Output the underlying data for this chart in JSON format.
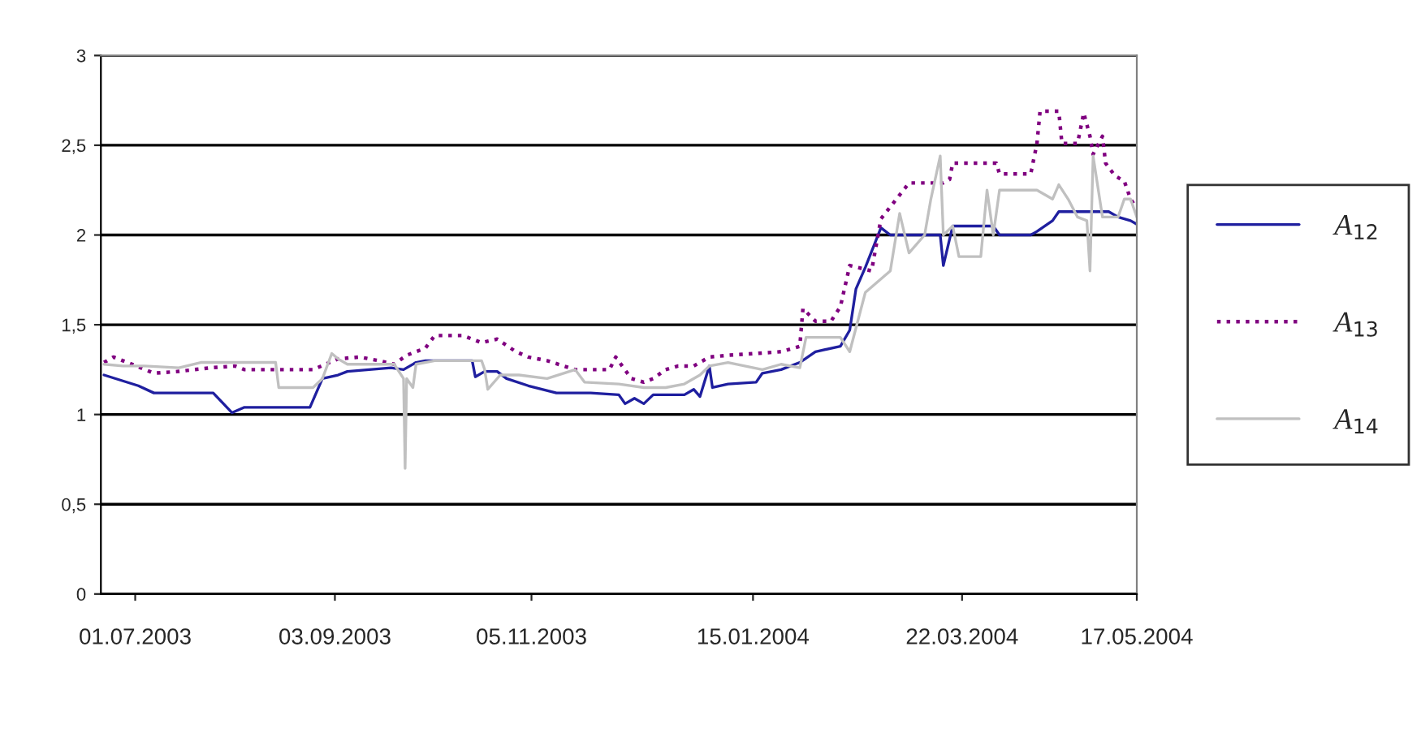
{
  "chart_data": {
    "type": "line",
    "xlim": [
      "2003-06-20",
      "2004-05-17"
    ],
    "xticks": [
      {
        "value": "2003-07-01",
        "label": "01.07.2003"
      },
      {
        "value": "2003-09-03",
        "label": "03.09.2003"
      },
      {
        "value": "2003-11-05",
        "label": "05.11.2003"
      },
      {
        "value": "2004-01-15",
        "label": "15.01.2004"
      },
      {
        "value": "2004-03-22",
        "label": "22.03.2004"
      },
      {
        "value": "2004-05-17",
        "label": "17.05.2004"
      }
    ],
    "ylim": [
      0,
      3
    ],
    "yticks": [
      0,
      {
        "value": 0.5,
        "label": "0,5"
      },
      1,
      {
        "value": 1.5,
        "label": "1,5"
      },
      2,
      {
        "value": 2.5,
        "label": "2,5"
      },
      3
    ],
    "grid": "y",
    "legend": "right",
    "series": [
      {
        "name": "A$_{12}$",
        "color": "#1f1f9f",
        "line_style": "solid",
        "x": [
          "2003-06-21",
          "2003-07-02",
          "2003-07-07",
          "2003-07-26",
          "2003-08-01",
          "2003-08-05",
          "2003-08-26",
          "2003-08-30",
          "2003-09-04",
          "2003-09-07",
          "2003-09-14",
          "2003-09-21",
          "2003-09-25",
          "2003-09-29",
          "2003-10-02",
          "2003-10-17",
          "2003-10-18",
          "2003-10-21",
          "2003-10-25",
          "2003-10-28",
          "2003-11-04",
          "2003-11-13",
          "2003-11-24",
          "2003-12-03",
          "2003-12-05",
          "2003-12-08",
          "2003-12-11",
          "2003-12-14",
          "2003-12-24",
          "2003-12-27",
          "2003-12-29",
          "2004-01-01",
          "2004-01-02",
          "2004-01-07",
          "2004-01-16",
          "2004-01-18",
          "2004-01-24",
          "2004-01-30",
          "2004-02-04",
          "2004-02-12",
          "2004-02-15",
          "2004-02-17",
          "2004-02-20",
          "2004-02-25",
          "2004-02-28",
          "2004-03-15",
          "2004-03-16",
          "2004-03-19",
          "2004-04-01",
          "2004-04-03",
          "2004-04-13",
          "2004-04-15",
          "2004-04-20",
          "2004-04-22",
          "2004-05-08",
          "2004-05-11",
          "2004-05-15",
          "2004-05-17"
        ],
        "values": [
          1.22,
          1.16,
          1.12,
          1.12,
          1.01,
          1.04,
          1.04,
          1.2,
          1.22,
          1.24,
          1.25,
          1.26,
          1.25,
          1.29,
          1.3,
          1.3,
          1.21,
          1.24,
          1.24,
          1.2,
          1.16,
          1.12,
          1.12,
          1.11,
          1.06,
          1.09,
          1.06,
          1.11,
          1.11,
          1.14,
          1.1,
          1.27,
          1.15,
          1.17,
          1.18,
          1.23,
          1.25,
          1.29,
          1.35,
          1.38,
          1.47,
          1.7,
          1.82,
          2.04,
          2.0,
          2.0,
          1.83,
          2.05,
          2.05,
          2.0,
          2.0,
          2.02,
          2.08,
          2.13,
          2.13,
          2.1,
          2.08,
          2.06
        ]
      },
      {
        "name": "A$_{13}$",
        "color": "#800080",
        "line_style": "dotted",
        "x": [
          "2003-06-21",
          "2003-06-24",
          "2003-06-30",
          "2003-07-07",
          "2003-07-15",
          "2003-07-25",
          "2003-08-02",
          "2003-08-05",
          "2003-08-27",
          "2003-08-31",
          "2003-09-04",
          "2003-09-11",
          "2003-09-17",
          "2003-09-22",
          "2003-09-26",
          "2003-10-02",
          "2003-10-05",
          "2003-10-14",
          "2003-10-20",
          "2003-10-25",
          "2003-10-31",
          "2003-11-04",
          "2003-11-10",
          "2003-11-19",
          "2003-11-30",
          "2003-12-02",
          "2003-12-07",
          "2003-12-11",
          "2003-12-14",
          "2003-12-18",
          "2003-12-22",
          "2003-12-27",
          "2004-01-01",
          "2004-01-07",
          "2004-01-16",
          "2004-01-24",
          "2004-01-30",
          "2004-01-31",
          "2004-02-04",
          "2004-02-09",
          "2004-02-12",
          "2004-02-15",
          "2004-02-22",
          "2004-02-25",
          "2004-03-05",
          "2004-03-16",
          "2004-03-18",
          "2004-03-19",
          "2004-04-02",
          "2004-04-03",
          "2004-04-13",
          "2004-04-15",
          "2004-04-16",
          "2004-04-22",
          "2004-04-23",
          "2004-04-28",
          "2004-04-30",
          "2004-05-02",
          "2004-05-03",
          "2004-05-06",
          "2004-05-07",
          "2004-05-10",
          "2004-05-13",
          "2004-05-15",
          "2004-05-17"
        ],
        "values": [
          1.29,
          1.32,
          1.28,
          1.23,
          1.24,
          1.26,
          1.27,
          1.25,
          1.25,
          1.28,
          1.31,
          1.32,
          1.3,
          1.28,
          1.33,
          1.37,
          1.44,
          1.44,
          1.4,
          1.42,
          1.35,
          1.32,
          1.3,
          1.25,
          1.25,
          1.32,
          1.2,
          1.18,
          1.2,
          1.25,
          1.27,
          1.27,
          1.32,
          1.33,
          1.34,
          1.35,
          1.38,
          1.59,
          1.52,
          1.52,
          1.6,
          1.83,
          1.8,
          2.09,
          2.29,
          2.29,
          2.31,
          2.4,
          2.4,
          2.34,
          2.34,
          2.51,
          2.69,
          2.69,
          2.51,
          2.51,
          2.68,
          2.55,
          2.45,
          2.55,
          2.4,
          2.33,
          2.3,
          2.2,
          2.15
        ]
      },
      {
        "name": "A$_{14}$",
        "color": "#c0c0c0",
        "line_style": "solid",
        "x": [
          "2003-06-21",
          "2003-06-27",
          "2003-07-04",
          "2003-07-15",
          "2003-07-22",
          "2003-08-15",
          "2003-08-16",
          "2003-08-27",
          "2003-08-30",
          "2003-09-02",
          "2003-09-04",
          "2003-09-07",
          "2003-09-22",
          "2003-09-25",
          "2003-09-25T12:00",
          "2003-09-26",
          "2003-09-28",
          "2003-09-29",
          "2003-10-05",
          "2003-10-20",
          "2003-10-21",
          "2003-10-22",
          "2003-10-26",
          "2003-11-01",
          "2003-11-10",
          "2003-11-19",
          "2003-11-22",
          "2003-12-03",
          "2003-12-11",
          "2003-12-18",
          "2003-12-24",
          "2003-12-29",
          "2004-01-01",
          "2004-01-07",
          "2004-01-18",
          "2004-01-24",
          "2004-01-30",
          "2004-02-01",
          "2004-02-12",
          "2004-02-15",
          "2004-02-20",
          "2004-02-28",
          "2004-03-02",
          "2004-03-05",
          "2004-03-10",
          "2004-03-12",
          "2004-03-15",
          "2004-03-16",
          "2004-03-19",
          "2004-03-21",
          "2004-03-28",
          "2004-03-30",
          "2004-04-01",
          "2004-04-03",
          "2004-04-15",
          "2004-04-20",
          "2004-04-22",
          "2004-04-25",
          "2004-04-28",
          "2004-05-01",
          "2004-05-02",
          "2004-05-03",
          "2004-05-06",
          "2004-05-11",
          "2004-05-13",
          "2004-05-15",
          "2004-05-17"
        ],
        "values": [
          1.28,
          1.27,
          1.27,
          1.26,
          1.29,
          1.29,
          1.15,
          1.15,
          1.2,
          1.34,
          1.31,
          1.28,
          1.28,
          1.2,
          0.7,
          1.2,
          1.15,
          1.28,
          1.3,
          1.3,
          1.25,
          1.14,
          1.22,
          1.22,
          1.2,
          1.25,
          1.18,
          1.17,
          1.15,
          1.15,
          1.17,
          1.22,
          1.27,
          1.29,
          1.25,
          1.28,
          1.26,
          1.43,
          1.43,
          1.35,
          1.68,
          1.8,
          2.12,
          1.9,
          2.0,
          2.2,
          2.44,
          2.0,
          2.05,
          1.88,
          1.88,
          2.25,
          2.0,
          2.25,
          2.25,
          2.2,
          2.28,
          2.2,
          2.1,
          2.08,
          1.8,
          2.44,
          2.1,
          2.1,
          2.2,
          2.2,
          2.1
        ]
      }
    ]
  }
}
